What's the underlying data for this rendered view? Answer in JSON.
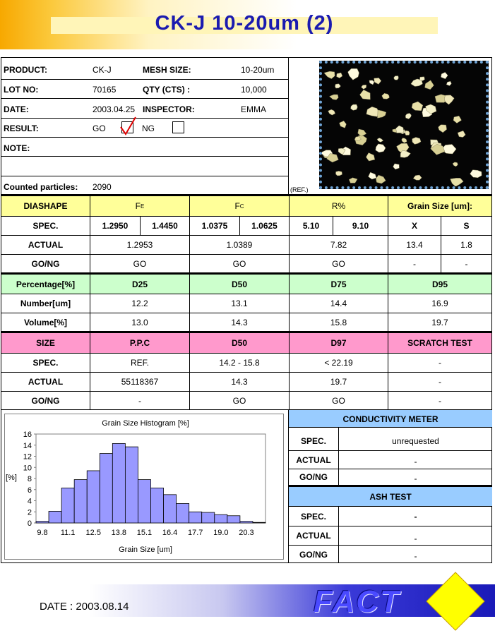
{
  "title": "CK-J 10-20um (2)",
  "info": {
    "product_label": "PRODUCT:",
    "product_value": "CK-J",
    "mesh_label": "MESH SIZE:",
    "mesh_value": "10-20um",
    "lot_label": "LOT NO:",
    "lot_value": "70165",
    "qty_label": "QTY (CTS) :",
    "qty_value": "10,000",
    "date_label": "DATE:",
    "date_value": "2003.04.25",
    "inspector_label": "INSPECTOR:",
    "inspector_value": "EMMA",
    "result_label": "RESULT:",
    "go_label": "GO",
    "ng_label": "NG",
    "result_checked": "GO",
    "note_label": "NOTE:",
    "counted_label": "Counted particles:",
    "counted_value": "2090",
    "photo_ref": "(REF.)"
  },
  "diashape": {
    "header": [
      "DIASHAPE",
      "F",
      "F",
      "R%",
      "Grain Size [um]:"
    ],
    "header_sub": [
      "",
      "E",
      "C",
      "",
      ""
    ],
    "spec_label": "SPEC.",
    "spec": [
      "1.2950",
      "1.4450",
      "1.0375",
      "1.0625",
      "5.10",
      "9.10",
      "X",
      "S"
    ],
    "actual_label": "ACTUAL",
    "actual": [
      "1.2953",
      "1.0389",
      "7.82",
      "13.4",
      "1.8"
    ],
    "gong_label": "GO/NG",
    "gong": [
      "GO",
      "GO",
      "GO",
      "-",
      "-"
    ]
  },
  "percentage": {
    "header": [
      "Percentage[%]",
      "D25",
      "D50",
      "D75",
      "D95"
    ],
    "rows": [
      {
        "label": "Number[um]",
        "values": [
          "12.2",
          "13.1",
          "14.4",
          "16.9"
        ]
      },
      {
        "label": "Volume[%]",
        "values": [
          "13.0",
          "14.3",
          "15.8",
          "19.7"
        ]
      }
    ]
  },
  "size": {
    "header": [
      "SIZE",
      "P.P.C",
      "D50",
      "D97",
      "SCRATCH TEST"
    ],
    "rows": [
      {
        "label": "SPEC.",
        "values": [
          "REF.",
          "14.2 - 15.8",
          "< 22.19",
          "-"
        ]
      },
      {
        "label": "ACTUAL",
        "values": [
          "55118367",
          "14.3",
          "19.7",
          "-"
        ]
      },
      {
        "label": "GO/NG",
        "values": [
          "-",
          "GO",
          "GO",
          "-"
        ]
      }
    ]
  },
  "conductivity": {
    "title": "CONDUCTIVITY METER",
    "rows": [
      {
        "label": "SPEC.",
        "value": "unrequested"
      },
      {
        "label": "ACTUAL",
        "value": "-"
      },
      {
        "label": "GO/NG",
        "value": "-"
      }
    ]
  },
  "ash": {
    "title": "ASH TEST",
    "rows": [
      {
        "label": "SPEC.",
        "value": "-"
      },
      {
        "label": "ACTUAL",
        "value": "-"
      },
      {
        "label": "GO/NG",
        "value": "-"
      }
    ]
  },
  "chart_data": {
    "type": "bar",
    "title": "Grain Size Histogram [%]",
    "xlabel": "Grain Size [um]",
    "ylabel": "[%]",
    "x_tick_labels": [
      "9.8",
      "11.1",
      "12.5",
      "13.8",
      "15.1",
      "16.4",
      "17.7",
      "19.0",
      "20.3"
    ],
    "y_ticks": [
      "0",
      "2",
      "4",
      "6",
      "8",
      "10",
      "12",
      "14",
      "16"
    ],
    "ylim": [
      0,
      16
    ],
    "values": [
      0.3,
      2.1,
      6.3,
      7.8,
      9.4,
      12.5,
      14.3,
      13.7,
      7.8,
      6.3,
      5.1,
      3.5,
      2.0,
      1.9,
      1.5,
      1.3,
      0.3,
      0.1
    ],
    "bar_color": "#9999ff",
    "grid": false,
    "legend": "none"
  },
  "footer": {
    "date": "DATE : 2003.08.14",
    "logo": "FACT"
  }
}
